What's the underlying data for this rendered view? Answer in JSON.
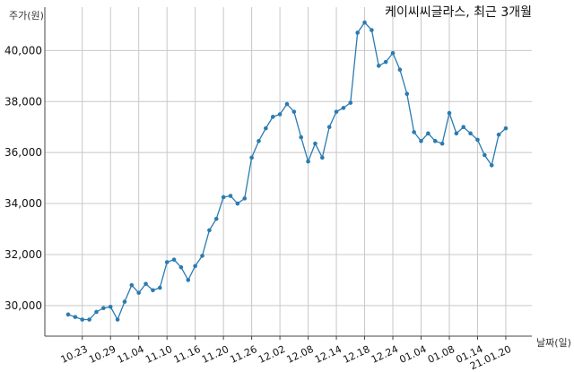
{
  "chart_data": {
    "type": "line",
    "title": "케이씨씨글라스, 최근 3개월",
    "xlabel": "날짜(일)",
    "ylabel": "주가(원)",
    "ylim": [
      28800,
      41700
    ],
    "y_ticks": [
      30000,
      32000,
      34000,
      36000,
      38000,
      40000
    ],
    "y_tick_labels": [
      "30,000",
      "32,000",
      "34,000",
      "36,000",
      "38,000",
      "40,000"
    ],
    "x_ticks": [
      {
        "index": 2,
        "label": "10.23"
      },
      {
        "index": 6,
        "label": "10.29"
      },
      {
        "index": 10,
        "label": "11.04"
      },
      {
        "index": 14,
        "label": "11.10"
      },
      {
        "index": 18,
        "label": "11.16"
      },
      {
        "index": 22,
        "label": "11.20"
      },
      {
        "index": 26,
        "label": "11.26"
      },
      {
        "index": 30,
        "label": "12.02"
      },
      {
        "index": 34,
        "label": "12.08"
      },
      {
        "index": 38,
        "label": "12.14"
      },
      {
        "index": 42,
        "label": "12.18"
      },
      {
        "index": 46,
        "label": "12.24"
      },
      {
        "index": 50,
        "label": "01.04"
      },
      {
        "index": 54,
        "label": "01.08"
      },
      {
        "index": 58,
        "label": "01.14"
      },
      {
        "index": 62,
        "label": "21.01.20"
      }
    ],
    "grid": true,
    "colors": {
      "series": "#2b7bb0",
      "grid": "#c8c8c8",
      "axis": "#444444"
    },
    "series": [
      {
        "values": [
          29650,
          29550,
          29450,
          29450,
          29750,
          29900,
          29950,
          29450,
          30150,
          30800,
          30500,
          30850,
          30600,
          30700,
          31700,
          31800,
          31500,
          31000,
          31550,
          31950,
          32950,
          33400,
          34250,
          34300,
          34000,
          34200,
          35800,
          36450,
          36950,
          37400,
          37500,
          37900,
          37600,
          36600,
          35650,
          36350,
          35800,
          37000,
          37600,
          37750,
          37950,
          40700,
          41100,
          40800,
          39400,
          39550,
          39900,
          39250,
          38300,
          36800,
          36450,
          36750,
          36450,
          36350,
          37550,
          36750,
          37000,
          36750,
          36500,
          35900,
          35500,
          36700,
          36950
        ]
      }
    ]
  }
}
